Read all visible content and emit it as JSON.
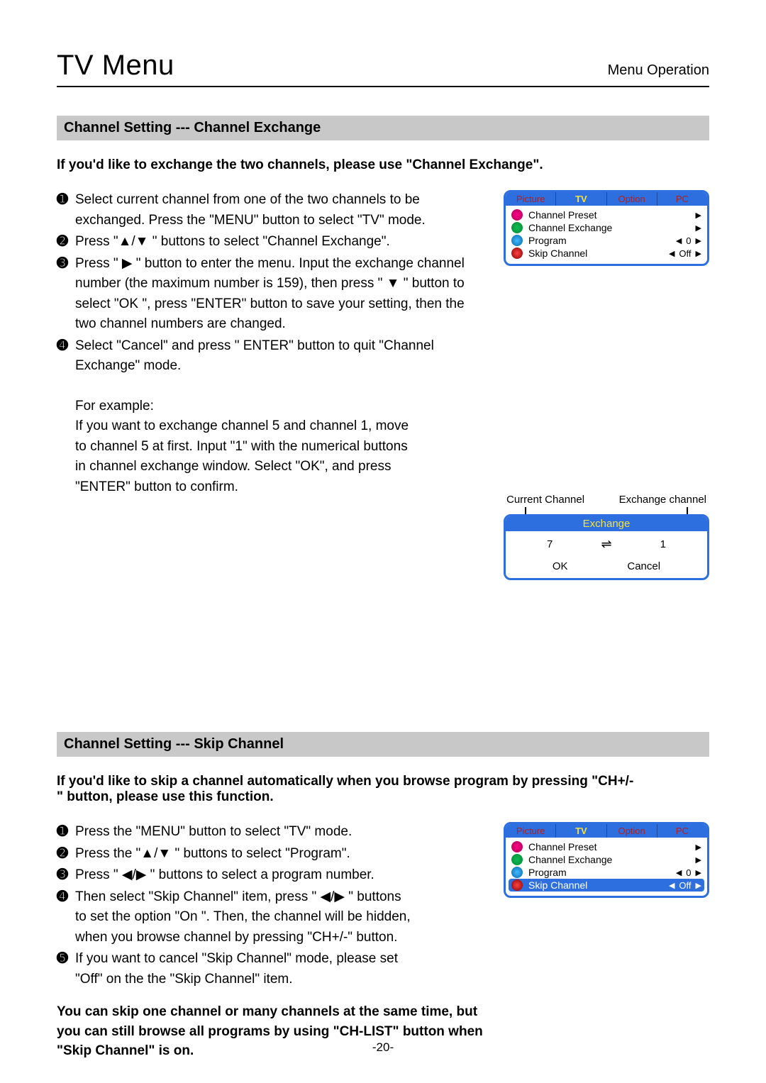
{
  "header": {
    "title": "TV Menu",
    "sub": "Menu Operation"
  },
  "section1": {
    "bar": "Channel Setting --- Channel Exchange",
    "intro": "If you'd like to exchange the two channels, please use \"Channel Exchange\".",
    "steps": [
      "Select current channel from one of the two channels to be exchanged. Press the \"MENU\" button to select \"TV\" mode.",
      "Press \"▲/▼ \" buttons to select \"Channel Exchange\".",
      "Press \" ▶ \" button to enter the menu. Input the exchange channel number (the maximum number is 159), then press \" ▼ \" button to select \"OK \", press \"ENTER\" button to save your setting, then the two channel numbers are changed.",
      "Select \"Cancel\" and press \" ENTER\" button to quit \"Channel Exchange\" mode."
    ],
    "example_label": "For example:",
    "example_text": "If you want to exchange channel 5 and channel 1, move to channel 5 at first. Input \"1\" with the numerical buttons in channel exchange window. Select \"OK\", and press \"ENTER\" button to confirm."
  },
  "osd": {
    "tabs": [
      "Picture",
      "TV",
      "Option",
      "PC"
    ],
    "active_tab": 1,
    "rows": [
      {
        "icon": "ic1",
        "label": "Channel Preset",
        "value": "",
        "type": "right"
      },
      {
        "icon": "ic2",
        "label": "Channel Exchange",
        "value": "",
        "type": "right"
      },
      {
        "icon": "ic3",
        "label": "Program",
        "value": "0",
        "type": "lr"
      },
      {
        "icon": "ic4",
        "label": "Skip Channel",
        "value": "Off",
        "type": "lr"
      }
    ]
  },
  "exchange": {
    "left_label": "Current Channel",
    "right_label": "Exchange channel",
    "title": "Exchange",
    "left_val": "7",
    "right_val": "1",
    "ok": "OK",
    "cancel": "Cancel"
  },
  "section2": {
    "bar": "Channel Setting --- Skip Channel",
    "intro": "If you'd like to skip a channel automatically when you browse program by pressing \"CH+/-\" button, please use this function.",
    "steps": [
      "Press the \"MENU\" button to select \"TV\" mode.",
      "Press the \"▲/▼ \" buttons to select \"Program\".",
      "Press \" ◀/▶ \" buttons to select a program number.",
      "Then select \"Skip Channel\" item, press \" ◀/▶ \" buttons to set the option \"On \". Then, the channel will be hidden, when you browse channel by pressing \"CH+/-\" button.",
      "If you want to cancel \"Skip Channel\" mode, please set \"Off\" on the the \"Skip Channel\" item."
    ],
    "note": "You can skip one channel or many channels at the same time, but you can still browse all programs by using \"CH-LIST\" button when \"Skip Channel\" is on."
  },
  "osd2_highlight_row": 3,
  "page_num": "-20-",
  "bullets": [
    "➊",
    "➋",
    "➌",
    "➍",
    "➎"
  ]
}
